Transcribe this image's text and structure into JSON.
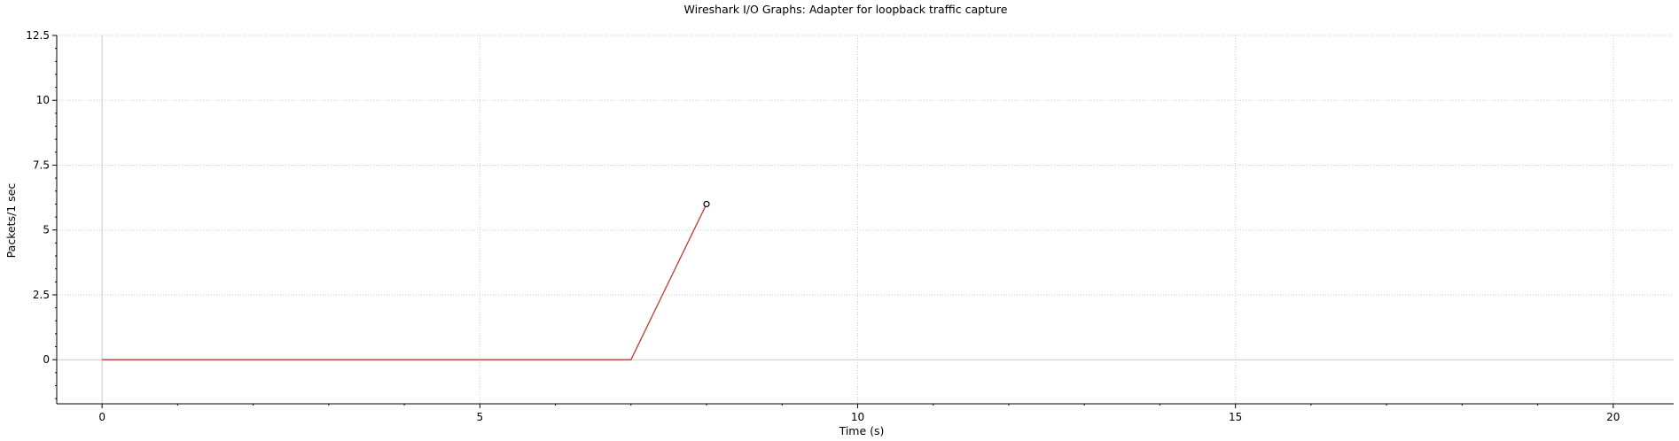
{
  "window": {
    "app": "Wireshark I/O Graphs"
  },
  "chart_data": {
    "type": "line",
    "title": "Wireshark I/O Graphs: Adapter for loopback traffic capture",
    "xlabel": "Time (s)",
    "ylabel": "Packets/1 sec",
    "xlim": [
      -0.6,
      20.8
    ],
    "ylim": [
      -1.7,
      12.5
    ],
    "x_ticks": [
      0,
      5,
      10,
      15,
      20
    ],
    "x_tick_labels": [
      "0",
      "5",
      "10",
      "15",
      "20"
    ],
    "y_ticks": [
      0,
      2.5,
      5,
      7.5,
      10,
      12.5
    ],
    "y_tick_labels": [
      "0",
      "2.5",
      "5",
      "7.5",
      "10",
      "12.5"
    ],
    "grid": true,
    "series": [
      {
        "x": [
          0,
          1,
          2,
          3,
          4,
          5,
          6,
          7,
          8
        ],
        "values": [
          0,
          0,
          0,
          0,
          0,
          0,
          0,
          0,
          6
        ],
        "color": "#c0392b",
        "last_point_marker": "circle"
      }
    ]
  }
}
